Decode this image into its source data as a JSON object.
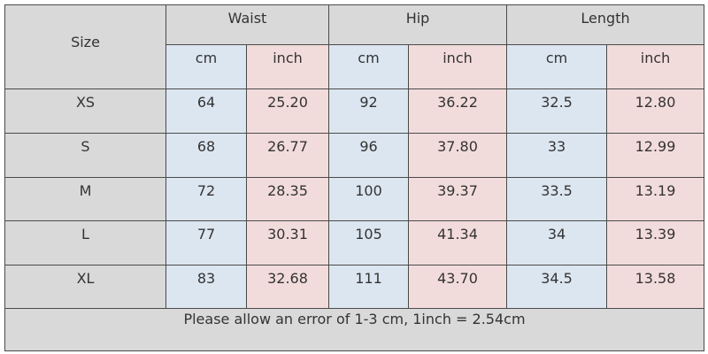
{
  "table": {
    "header": {
      "size": "Size",
      "groups": [
        "Waist",
        "Hip",
        "Length"
      ],
      "units": [
        "cm",
        "inch",
        "cm",
        "inch",
        "cm",
        "inch"
      ]
    },
    "rows": [
      [
        "XS",
        "64",
        "25.20",
        "92",
        "36.22",
        "32.5",
        "12.80"
      ],
      [
        "S",
        "68",
        "26.77",
        "96",
        "37.80",
        "33",
        "12.99"
      ],
      [
        "M",
        "72",
        "28.35",
        "100",
        "39.37",
        "33.5",
        "13.19"
      ],
      [
        "L",
        "77",
        "30.31",
        "105",
        "41.34",
        "34",
        "13.39"
      ],
      [
        "XL",
        "83",
        "32.68",
        "111",
        "43.70",
        "34.5",
        "13.58"
      ]
    ],
    "note": "Please allow an error of 1-3 cm, 1inch = 2.54cm"
  }
}
